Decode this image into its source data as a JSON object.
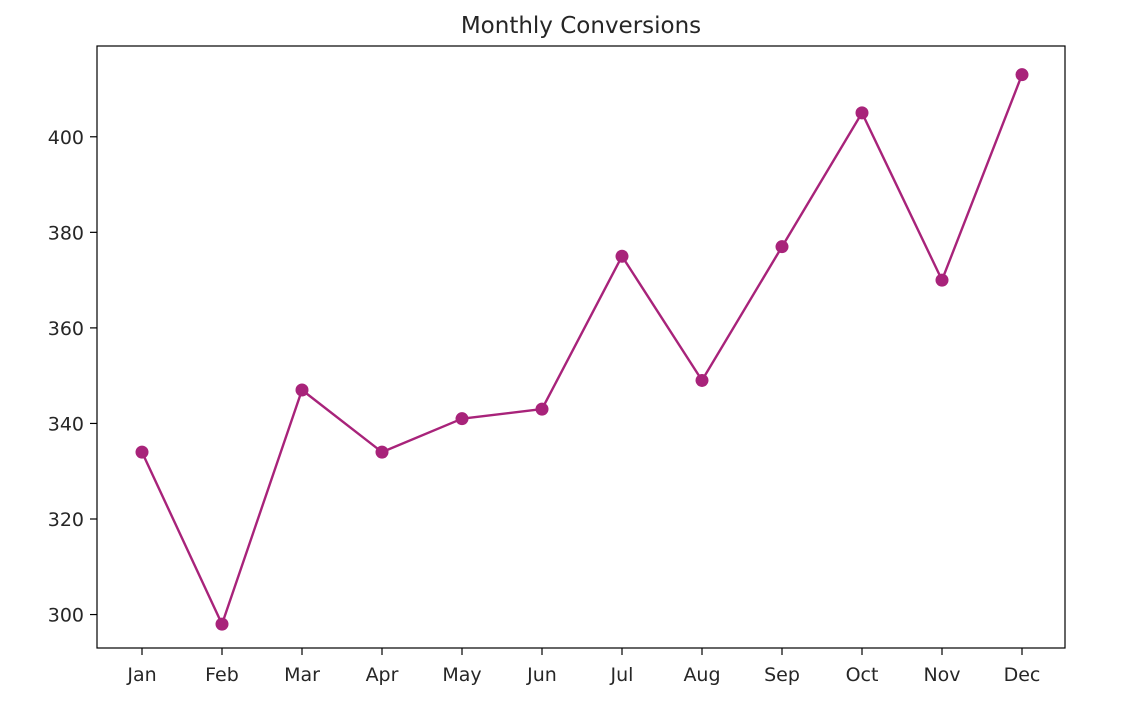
{
  "chart_data": {
    "type": "line",
    "title": "Monthly Conversions",
    "xlabel": "",
    "ylabel": "",
    "categories": [
      "Jan",
      "Feb",
      "Mar",
      "Apr",
      "May",
      "Jun",
      "Jul",
      "Aug",
      "Sep",
      "Oct",
      "Nov",
      "Dec"
    ],
    "series": [
      {
        "values": [
          334,
          298,
          347,
          334,
          341,
          343,
          375,
          349,
          377,
          405,
          370,
          413
        ],
        "color": "#a8237a",
        "marker": "circle"
      }
    ],
    "ylim": [
      293,
      419
    ],
    "yticks": [
      300,
      320,
      340,
      360,
      380,
      400
    ],
    "grid": false,
    "legend": "none"
  }
}
